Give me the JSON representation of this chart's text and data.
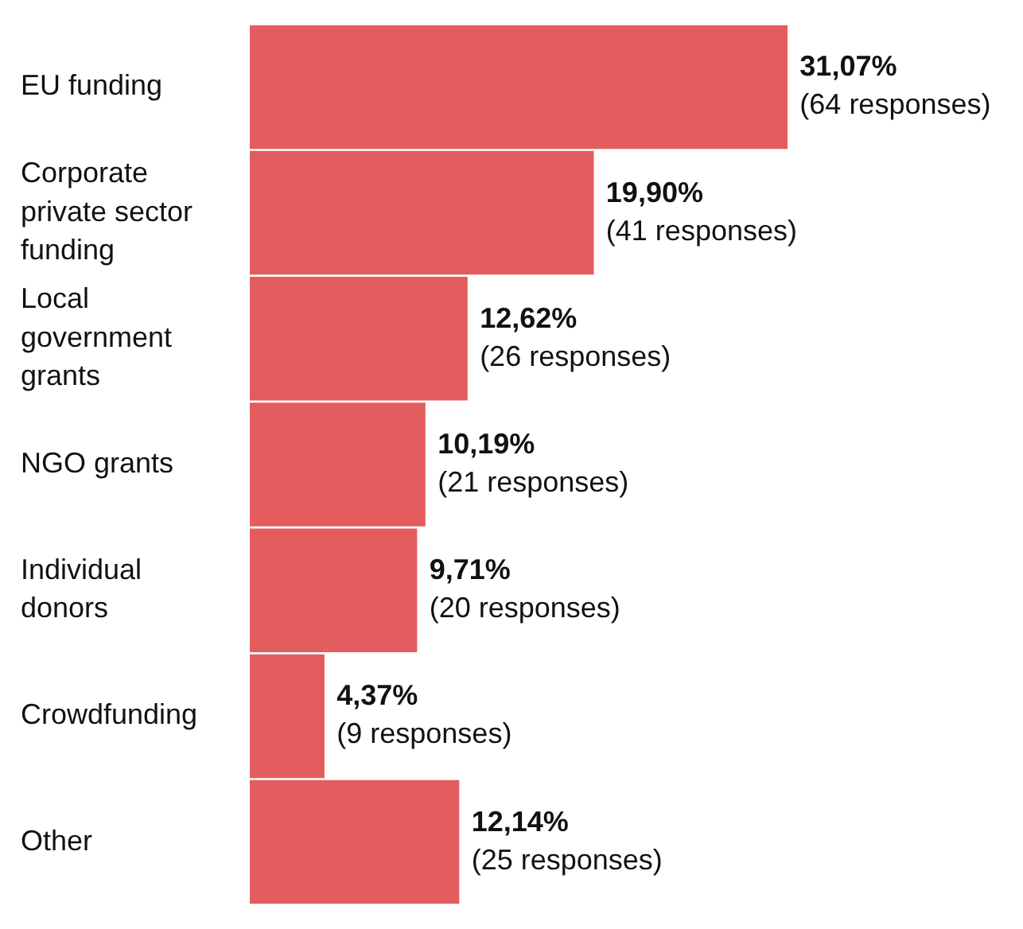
{
  "chart_data": {
    "type": "bar",
    "orientation": "horizontal",
    "categories": [
      "EU funding",
      "Corporate private sector funding",
      "Local government grants",
      "NGO grants",
      "Individual donors",
      "Crowdfunding",
      "Other"
    ],
    "values": [
      31.07,
      19.9,
      12.62,
      10.19,
      9.71,
      4.37,
      12.14
    ],
    "color": "#e35d5e",
    "value_labels": [
      "31,07%\n(64 responses)",
      "19,90%\n(41 responses)",
      "12,62%\n(26 responses)",
      "10,19%\n(21 responses)",
      "9,71%\n(20 responses)",
      "4,37%\n(9 responses)",
      "12,14%\n(25 responses)"
    ]
  }
}
